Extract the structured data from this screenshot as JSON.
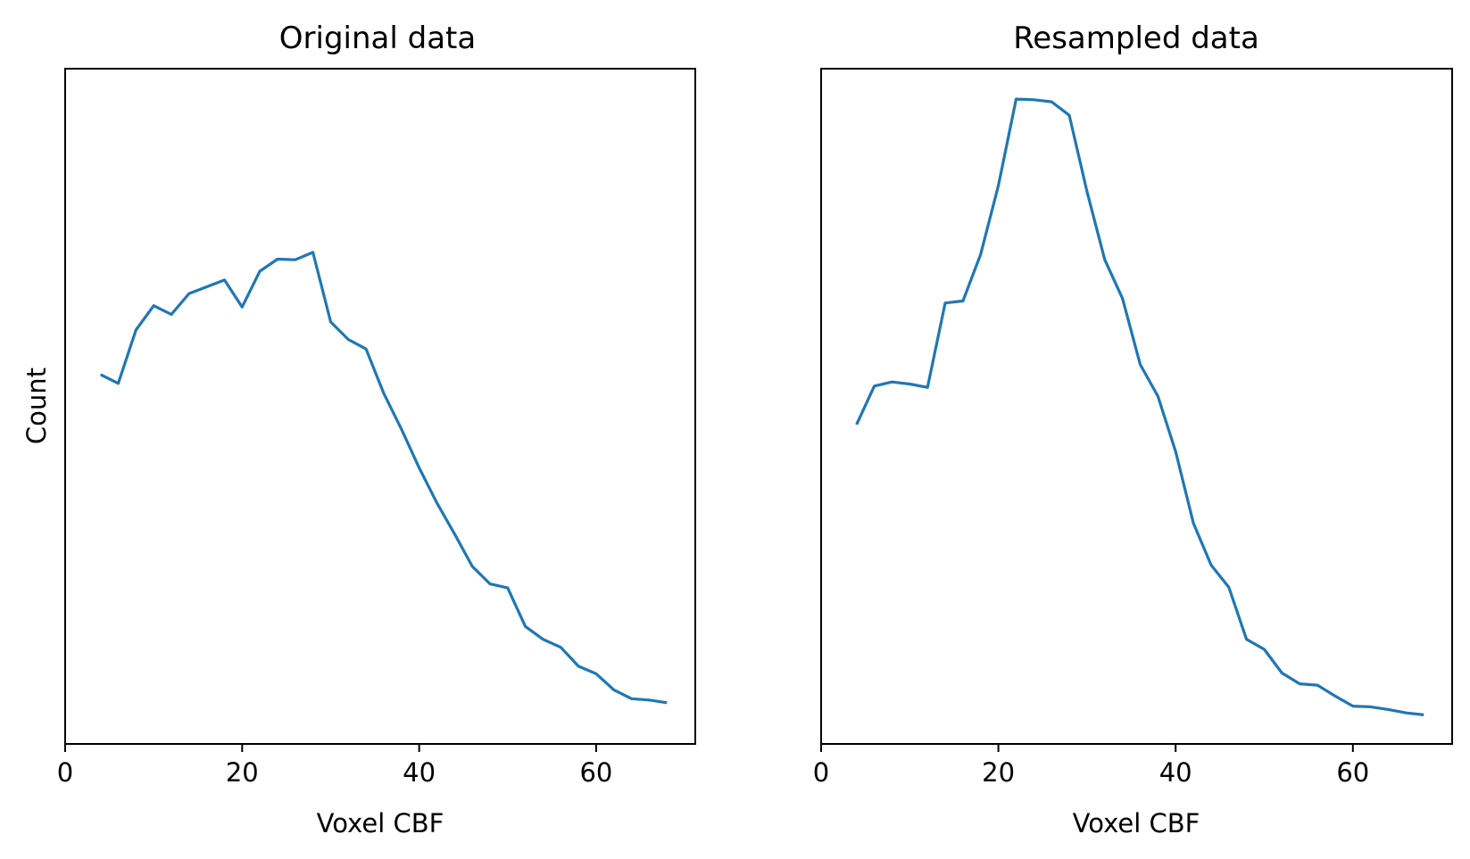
{
  "chart_data": [
    {
      "type": "line",
      "title": "Original data",
      "xlabel": "Voxel CBF",
      "ylabel": "Count",
      "xlim": [
        0,
        71.2
      ],
      "ylim": [
        0,
        1
      ],
      "xticks": [
        0,
        20,
        40,
        60
      ],
      "y_tick_labels_shown": false,
      "grid": false,
      "series": [
        {
          "color": "#1f77b4",
          "x": [
            4,
            6,
            8,
            10,
            12,
            14,
            16,
            18,
            20,
            22,
            24,
            26,
            28,
            30,
            32,
            34,
            36,
            38,
            40,
            42,
            44,
            46,
            48,
            50,
            52,
            54,
            56,
            58,
            60,
            62,
            64,
            66,
            68
          ],
          "y": [
            0.547,
            0.534,
            0.613,
            0.649,
            0.636,
            0.667,
            0.677,
            0.687,
            0.647,
            0.7,
            0.718,
            0.717,
            0.728,
            0.625,
            0.599,
            0.585,
            0.519,
            0.466,
            0.409,
            0.357,
            0.311,
            0.263,
            0.237,
            0.231,
            0.174,
            0.155,
            0.143,
            0.115,
            0.104,
            0.08,
            0.067,
            0.065,
            0.061
          ]
        }
      ]
    },
    {
      "type": "line",
      "title": "Resampled data",
      "xlabel": "Voxel CBF",
      "ylabel": "",
      "xlim": [
        0,
        71.2
      ],
      "ylim": [
        0,
        1
      ],
      "xticks": [
        0,
        20,
        40,
        60
      ],
      "y_tick_labels_shown": false,
      "grid": false,
      "series": [
        {
          "color": "#1f77b4",
          "x": [
            4,
            6,
            8,
            10,
            12,
            14,
            16,
            18,
            20,
            22,
            24,
            26,
            28,
            30,
            32,
            34,
            36,
            38,
            40,
            42,
            44,
            46,
            48,
            50,
            52,
            54,
            56,
            58,
            60,
            62,
            64,
            66,
            68
          ],
          "y": [
            0.473,
            0.53,
            0.536,
            0.533,
            0.528,
            0.653,
            0.656,
            0.725,
            0.827,
            0.955,
            0.954,
            0.951,
            0.931,
            0.818,
            0.717,
            0.66,
            0.562,
            0.515,
            0.433,
            0.327,
            0.265,
            0.232,
            0.155,
            0.14,
            0.105,
            0.089,
            0.087,
            0.071,
            0.056,
            0.055,
            0.051,
            0.046,
            0.043
          ]
        }
      ]
    }
  ]
}
